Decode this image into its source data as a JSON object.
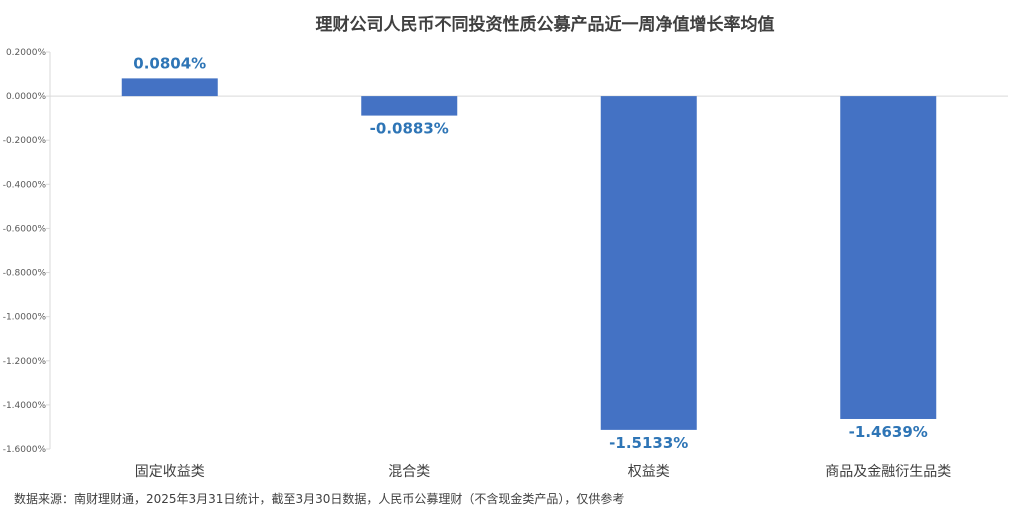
{
  "chart_data": {
    "type": "bar",
    "title": "理财公司人民币不同投资性质公募产品近一周净值增长率均值",
    "categories": [
      "固定收益类",
      "混合类",
      "权益类",
      "商品及金融衍生品类"
    ],
    "values": [
      0.0804,
      -0.0883,
      -1.5133,
      -1.4639
    ],
    "value_labels": [
      "0.0804%",
      "-0.0883%",
      "-1.5133%",
      "-1.4639%"
    ],
    "unit": "%",
    "ylim": [
      -1.6,
      0.2
    ],
    "yticks": [
      0.2,
      0.0,
      -0.2,
      -0.4,
      -0.6,
      -0.8,
      -1.0,
      -1.2,
      -1.4,
      -1.6
    ],
    "ytick_labels": [
      "0.2000%",
      "0.0000%",
      "-0.2000%",
      "-0.4000%",
      "-0.6000%",
      "-0.8000%",
      "-1.0000%",
      "-1.2000%",
      "-1.4000%",
      "-1.6000%"
    ],
    "xlabel": "",
    "ylabel": "",
    "grid": false,
    "legend": "none",
    "bar_color": "#4472c4",
    "label_color": "#2e75b6"
  },
  "footer": {
    "source": "数据来源：南财理财通，2025年3月31日统计，截至3月30日数据，人民币公募理财（不含现金类产品），仅供参考"
  }
}
